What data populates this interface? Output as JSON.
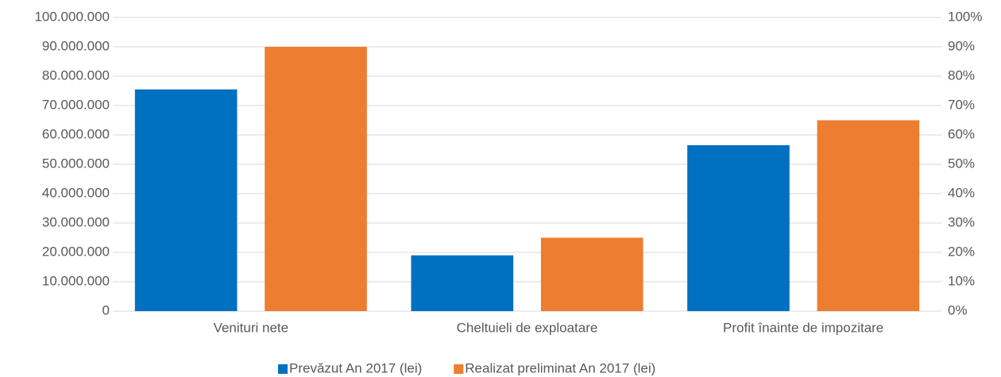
{
  "chart_data": {
    "type": "bar",
    "categories": [
      "Venituri nete",
      "Cheltuieli de exploatare",
      "Profit înainte de impozitare"
    ],
    "series": [
      {
        "name": "Prevăzut An 2017 (lei)",
        "color": "#0070c0",
        "values": [
          75500000,
          19000000,
          56500000
        ]
      },
      {
        "name": "Realizat preliminat An 2017 (lei)",
        "color": "#ed7d31",
        "values": [
          90000000,
          25000000,
          65000000
        ]
      }
    ],
    "ylim": [
      0,
      100000000
    ],
    "yticks": [
      0,
      {
        "value": 10000000,
        "label": "10.000.000"
      },
      {
        "value": 20000000,
        "label": "20.000.000"
      },
      {
        "value": 30000000,
        "label": "30.000.000"
      },
      {
        "value": 40000000,
        "label": "40.000.000"
      },
      {
        "value": 50000000,
        "label": "50.000.000"
      },
      {
        "value": 60000000,
        "label": "60.000.000"
      },
      {
        "value": 70000000,
        "label": "70.000.000"
      },
      {
        "value": 80000000,
        "label": "80.000.000"
      },
      {
        "value": 90000000,
        "label": "90.000.000"
      },
      {
        "value": 100000000,
        "label": "100.000.000"
      }
    ],
    "y2lim": [
      0,
      100
    ],
    "y2ticks": [
      {
        "value": 0,
        "label": "0%"
      },
      {
        "value": 10,
        "label": "10%"
      },
      {
        "value": 20,
        "label": "20%"
      },
      {
        "value": 30,
        "label": "30%"
      },
      {
        "value": 40,
        "label": "40%"
      },
      {
        "value": 50,
        "label": "50%"
      },
      {
        "value": 60,
        "label": "60%"
      },
      {
        "value": 70,
        "label": "70%"
      },
      {
        "value": 80,
        "label": "80%"
      },
      {
        "value": 90,
        "label": "90%"
      },
      {
        "value": 100,
        "label": "100%"
      }
    ],
    "grid": true,
    "legend": "bottom"
  }
}
